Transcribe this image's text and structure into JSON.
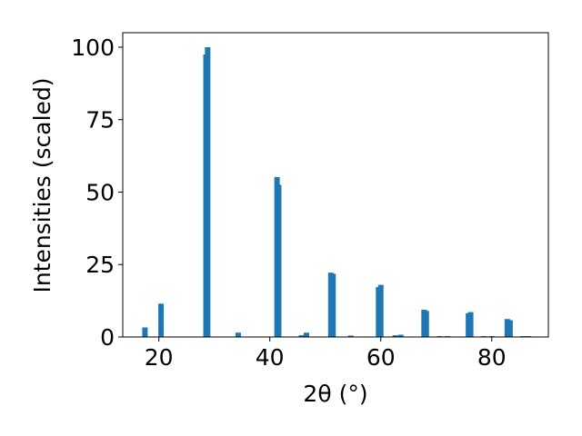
{
  "chart_data": {
    "type": "bar",
    "x_label": "2θ (°)",
    "y_label": "Intensities (scaled)",
    "x": [
      17.5,
      20.4,
      28.5,
      28.8,
      34.3,
      41.3,
      41.6,
      45.7,
      46.6,
      51.0,
      51.4,
      54.6,
      59.6,
      60.0,
      62.6,
      63.6,
      67.8,
      68.2,
      70.6,
      72.0,
      75.8,
      76.2,
      78.6,
      80.0,
      82.8,
      83.3,
      85.6,
      86.6
    ],
    "values": [
      3.3,
      11.5,
      97.5,
      100,
      1.5,
      55.2,
      52.5,
      0.6,
      1.5,
      22.2,
      21.8,
      0.5,
      17.2,
      18.0,
      0.6,
      0.8,
      9.4,
      9.0,
      0.3,
      0.3,
      8.2,
      8.6,
      0.3,
      0.3,
      6.2,
      5.8,
      0.3,
      0.3
    ],
    "color": "#1f77b4",
    "xlim": [
      13.5,
      90.2
    ],
    "xticks": [
      20,
      40,
      60,
      80
    ],
    "ylim": [
      0,
      105
    ],
    "yticks": [
      0,
      25,
      50,
      75,
      100
    ]
  }
}
